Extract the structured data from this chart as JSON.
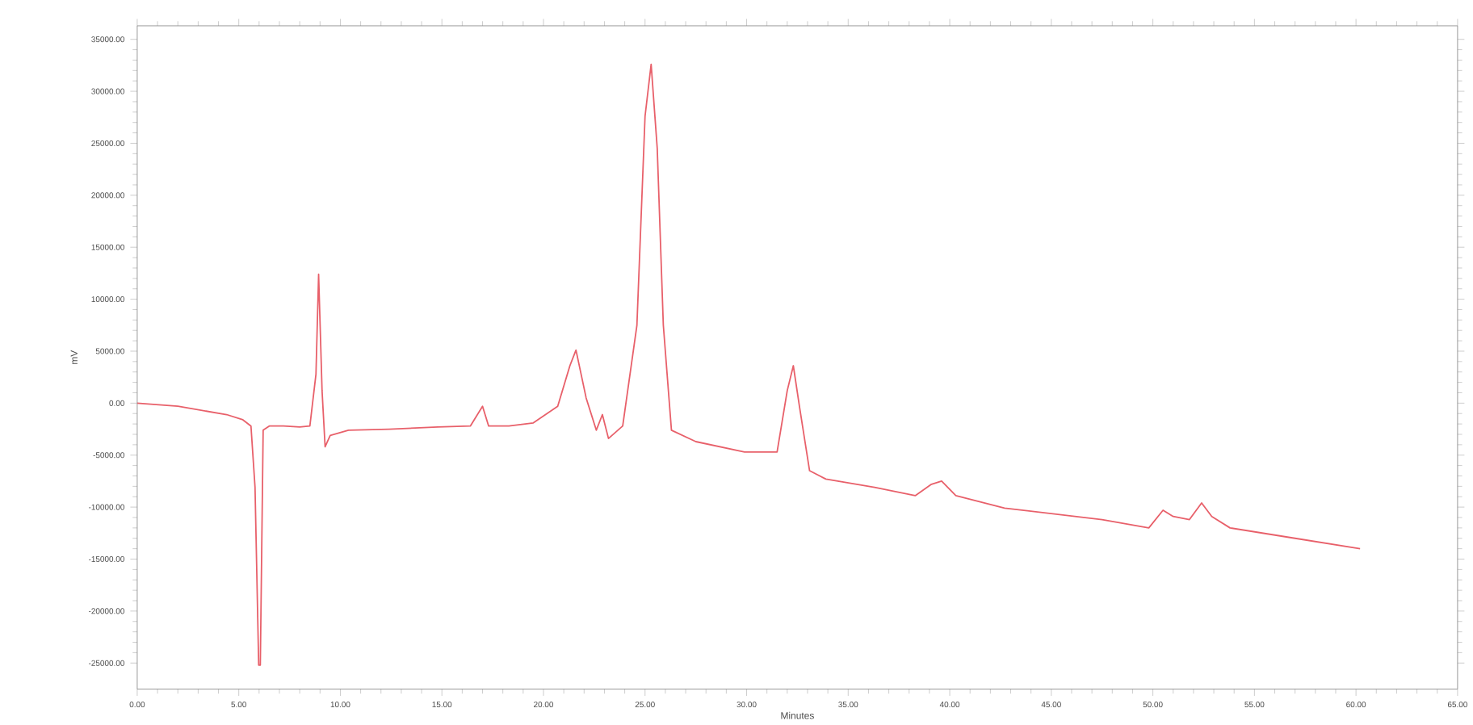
{
  "chart_data": {
    "type": "line",
    "xlabel": "Minutes",
    "ylabel": "mV",
    "xlim": [
      0,
      65
    ],
    "ylim": [
      -27500,
      36300
    ],
    "xticks": [
      {
        "value": 0,
        "label": "0.00"
      },
      {
        "value": 5,
        "label": "5.00"
      },
      {
        "value": 10,
        "label": "10.00"
      },
      {
        "value": 15,
        "label": "15.00"
      },
      {
        "value": 20,
        "label": "20.00"
      },
      {
        "value": 25,
        "label": "25.00"
      },
      {
        "value": 30,
        "label": "30.00"
      },
      {
        "value": 35,
        "label": "35.00"
      },
      {
        "value": 40,
        "label": "40.00"
      },
      {
        "value": 45,
        "label": "45.00"
      },
      {
        "value": 50,
        "label": "50.00"
      },
      {
        "value": 55,
        "label": "55.00"
      },
      {
        "value": 60,
        "label": "60.00"
      },
      {
        "value": 65,
        "label": "65.00"
      }
    ],
    "yticks": [
      {
        "value": -25000,
        "label": "-25000.00"
      },
      {
        "value": -20000,
        "label": "-20000.00"
      },
      {
        "value": -15000,
        "label": "-15000.00"
      },
      {
        "value": -10000,
        "label": "-10000.00"
      },
      {
        "value": -5000,
        "label": "-5000.00"
      },
      {
        "value": 0,
        "label": "0.00"
      },
      {
        "value": 5000,
        "label": "5000.00"
      },
      {
        "value": 10000,
        "label": "10000.00"
      },
      {
        "value": 15000,
        "label": "15000.00"
      },
      {
        "value": 20000,
        "label": "20000.00"
      },
      {
        "value": 25000,
        "label": "25000.00"
      },
      {
        "value": 30000,
        "label": "30000.00"
      },
      {
        "value": 35000,
        "label": "35000.00"
      }
    ],
    "series": [
      {
        "color": "#e8606a",
        "x": [
          0,
          2.0,
          4.4,
          5.2,
          5.6,
          5.8,
          5.98,
          6.06,
          6.2,
          6.5,
          7.2,
          8.0,
          8.5,
          8.8,
          8.93,
          9.1,
          9.25,
          9.5,
          10.4,
          12.4,
          14.8,
          16.4,
          17.0,
          17.3,
          18.3,
          19.5,
          20.7,
          21.3,
          21.6,
          22.1,
          22.6,
          22.9,
          23.2,
          23.9,
          24.6,
          25.0,
          25.3,
          25.6,
          25.9,
          26.3,
          27.5,
          29.9,
          31.5,
          32.0,
          32.3,
          32.6,
          33.1,
          33.9,
          36.3,
          38.3,
          39.1,
          39.6,
          40.3,
          42.7,
          47.5,
          49.8,
          50.5,
          51.0,
          51.8,
          52.4,
          52.9,
          53.8,
          57.0,
          60.2
        ],
        "values": [
          0,
          -300,
          -1100,
          -1600,
          -2200,
          -8100,
          -25200,
          -25200,
          -2600,
          -2200,
          -2200,
          -2300,
          -2200,
          2800,
          12400,
          1200,
          -4200,
          -3100,
          -2600,
          -2500,
          -2300,
          -2200,
          -300,
          -2200,
          -2200,
          -1900,
          -300,
          3600,
          5100,
          500,
          -2600,
          -1100,
          -3400,
          -2200,
          7500,
          27600,
          32600,
          24500,
          7500,
          -2600,
          -3700,
          -4700,
          -4700,
          1200,
          3600,
          -300,
          -6500,
          -7300,
          -8100,
          -8900,
          -7800,
          -7500,
          -8900,
          -10100,
          -11200,
          -12000,
          -10300,
          -10900,
          -11200,
          -9600,
          -10900,
          -12000,
          -13000,
          -14000
        ]
      }
    ]
  }
}
